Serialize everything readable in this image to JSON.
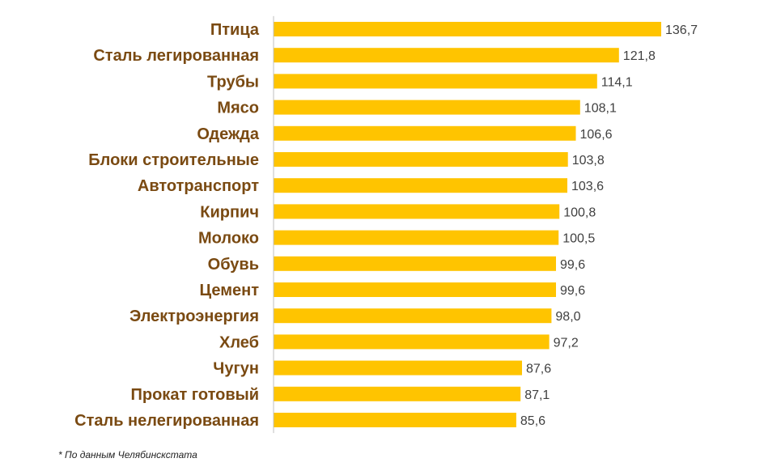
{
  "chart_data": {
    "type": "bar",
    "orientation": "horizontal",
    "categories": [
      "Птица",
      "Сталь легированная",
      "Трубы",
      "Мясо",
      "Одежда",
      "Блоки строительные",
      "Автотранспорт",
      "Кирпич",
      "Молоко",
      "Обувь",
      "Цемент",
      "Электроэнергия",
      "Хлеб",
      "Чугун",
      "Прокат готовый",
      "Сталь нелегированная"
    ],
    "values": [
      136.7,
      121.8,
      114.1,
      108.1,
      106.6,
      103.8,
      103.6,
      100.8,
      100.5,
      99.6,
      99.6,
      98.0,
      97.2,
      87.6,
      87.1,
      85.6
    ],
    "value_labels": [
      "136,7",
      "121,8",
      "114,1",
      "108,1",
      "106,6",
      "103,8",
      "103,6",
      "100,8",
      "100,5",
      "99,6",
      "99,6",
      "98,0",
      "97,2",
      "87,6",
      "87,1",
      "85,6"
    ],
    "xlim": [
      0,
      140
    ],
    "grid": false,
    "legend": "none",
    "colors": {
      "bar": "#ffc400",
      "category_text": "#7a4a12",
      "value_text": "#404040",
      "axis": "#bfbfbf"
    }
  },
  "footnote": "* По данным Челябинскстата"
}
